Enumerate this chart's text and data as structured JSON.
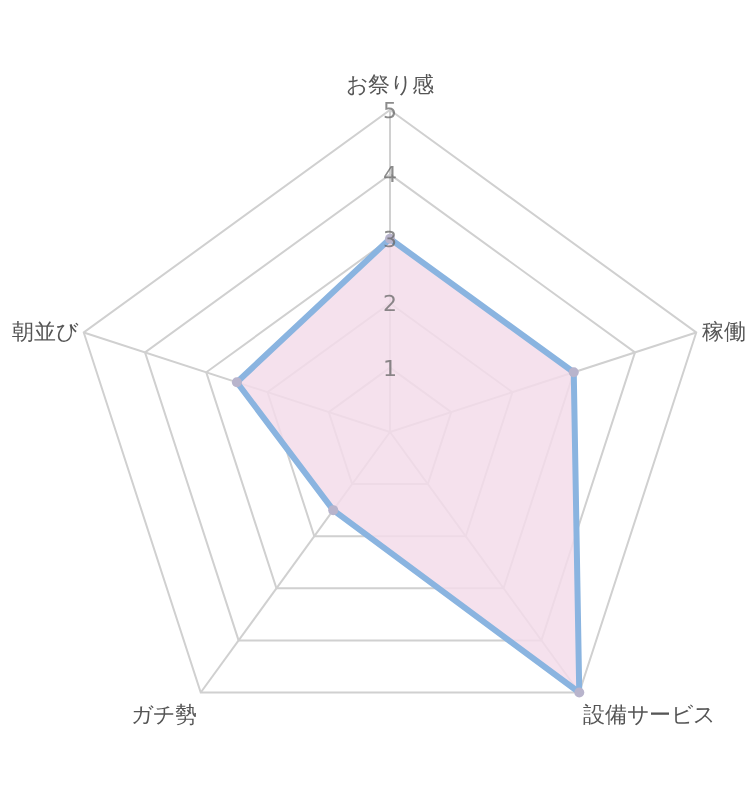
{
  "chart_data": {
    "type": "radar",
    "categories": [
      "お祭り感",
      "稼働",
      "設備サービス",
      "ガチ勢",
      "朝並び"
    ],
    "series": [
      {
        "color": "#8ab4e0",
        "values": [
          3,
          3,
          5,
          1.5,
          2.5
        ]
      }
    ],
    "ylim": [
      0,
      5
    ],
    "yticks": [
      1,
      2,
      3,
      4,
      5
    ],
    "grid": true,
    "marker": "circle"
  }
}
